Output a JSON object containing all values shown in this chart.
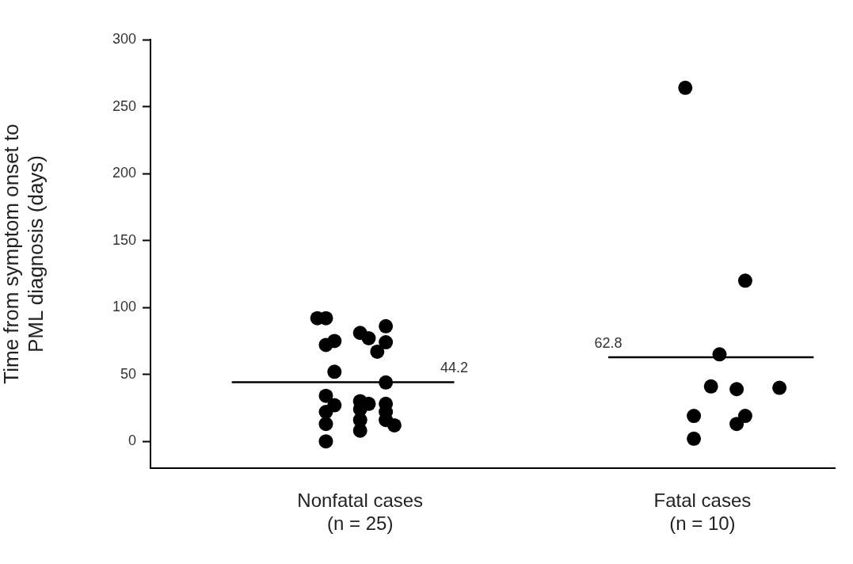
{
  "chart_data": {
    "type": "scatter",
    "ylabel": "Time from symptom onset to\nPML diagnosis (days)",
    "categories": [
      null,
      null,
      null,
      null,
      null,
      null,
      null,
      null,
      null,
      null,
      null,
      null,
      null,
      null,
      null,
      null,
      null,
      null,
      null,
      null,
      null,
      null,
      null,
      null,
      "Nonfatal cases\n(n = 25)",
      null,
      null,
      null,
      null,
      null,
      null,
      null,
      null,
      null,
      null,
      null,
      null,
      null,
      null,
      null,
      null,
      null,
      null,
      null,
      null,
      null,
      null,
      null,
      null,
      null,
      null,
      null,
      null,
      null,
      null,
      null,
      null,
      null,
      null,
      null,
      null,
      null,
      null,
      null,
      "Fatal cases\n(n = 10)",
      null,
      null,
      null,
      null,
      null,
      null,
      null,
      null,
      null,
      null,
      null,
      null,
      null,
      null,
      null
    ],
    "ylim": [
      -20,
      300
    ],
    "yticks": [
      0,
      50,
      100,
      150,
      200,
      250,
      300
    ],
    "grid": false,
    "legend": false,
    "marker": "circle",
    "series": [
      {
        "color": "#000000",
        "values": [
          null,
          null,
          null,
          null,
          null,
          null,
          null,
          null,
          null,
          null,
          null,
          null,
          null,
          null,
          null,
          null,
          null,
          null,
          null,
          92,
          92,
          75,
          null,
          null,
          81,
          77,
          67,
          86,
          null,
          null,
          null,
          null,
          null,
          null,
          null,
          null,
          null,
          null,
          null,
          null,
          null,
          null,
          null,
          null,
          null,
          null,
          null,
          null,
          null,
          null,
          null,
          null,
          null,
          null,
          null,
          null,
          null,
          null,
          null,
          null,
          null,
          null,
          264,
          19,
          null,
          41,
          65,
          null,
          39,
          120,
          null,
          null,
          null,
          40,
          null,
          null,
          null,
          null,
          null,
          null
        ]
      },
      {
        "color": "#000000",
        "values": [
          null,
          null,
          null,
          null,
          null,
          null,
          null,
          null,
          null,
          null,
          null,
          null,
          null,
          null,
          null,
          null,
          null,
          null,
          null,
          null,
          72,
          52,
          null,
          null,
          30,
          null,
          null,
          74,
          null,
          null,
          null,
          null,
          null,
          null,
          null,
          null,
          null,
          null,
          null,
          null,
          null,
          null,
          null,
          null,
          null,
          null,
          null,
          null,
          null,
          null,
          null,
          null,
          null,
          null,
          null,
          null,
          null,
          null,
          null,
          null,
          null,
          null,
          null,
          2,
          null,
          null,
          null,
          null,
          13,
          19,
          null,
          null,
          null,
          null,
          null,
          null,
          null,
          null,
          null,
          null
        ]
      },
      {
        "color": "#000000",
        "values": [
          null,
          null,
          null,
          null,
          null,
          null,
          null,
          null,
          null,
          null,
          null,
          null,
          null,
          null,
          null,
          null,
          null,
          null,
          null,
          null,
          34,
          27,
          null,
          null,
          null,
          28,
          null,
          44,
          null,
          null,
          null,
          null,
          null,
          null,
          null,
          null,
          null,
          null,
          null,
          null,
          null,
          null,
          null,
          null,
          null,
          null,
          null,
          null,
          null,
          null,
          null,
          null,
          null,
          null,
          null,
          null,
          null,
          null,
          null,
          null,
          null,
          null,
          null,
          null,
          null,
          null,
          null,
          null,
          null,
          null,
          null,
          null,
          null,
          null,
          null,
          null,
          null,
          null,
          null,
          null
        ]
      },
      {
        "color": "#000000",
        "values": [
          null,
          null,
          null,
          null,
          null,
          null,
          null,
          null,
          null,
          null,
          null,
          null,
          null,
          null,
          null,
          null,
          null,
          null,
          null,
          null,
          22,
          null,
          null,
          null,
          24,
          null,
          null,
          28,
          null,
          null,
          null,
          null,
          null,
          null,
          null,
          null,
          null,
          null,
          null,
          null,
          null,
          null,
          null,
          null,
          null,
          null,
          null,
          null,
          null,
          null,
          null,
          null,
          null,
          null,
          null,
          null,
          null,
          null,
          null,
          null,
          null,
          null,
          null,
          null,
          null,
          null,
          null,
          null,
          null,
          null,
          null,
          null,
          null,
          null,
          null,
          null,
          null,
          null,
          null,
          null
        ]
      },
      {
        "color": "#000000",
        "values": [
          null,
          null,
          null,
          null,
          null,
          null,
          null,
          null,
          null,
          null,
          null,
          null,
          null,
          null,
          null,
          null,
          null,
          null,
          null,
          null,
          13,
          null,
          null,
          null,
          16,
          null,
          null,
          22,
          null,
          null,
          null,
          null,
          null,
          null,
          null,
          null,
          null,
          null,
          null,
          null,
          null,
          null,
          null,
          null,
          null,
          null,
          null,
          null,
          null,
          null,
          null,
          null,
          null,
          null,
          null,
          null,
          null,
          null,
          null,
          null,
          null,
          null,
          null,
          null,
          null,
          null,
          null,
          null,
          null,
          null,
          null,
          null,
          null,
          null,
          null,
          null,
          null,
          null,
          null,
          null
        ]
      },
      {
        "color": "#000000",
        "values": [
          null,
          null,
          null,
          null,
          null,
          null,
          null,
          null,
          null,
          null,
          null,
          null,
          null,
          null,
          null,
          null,
          null,
          null,
          null,
          null,
          0,
          null,
          null,
          null,
          8,
          null,
          null,
          16,
          null,
          null,
          null,
          null,
          null,
          null,
          null,
          null,
          null,
          null,
          null,
          null,
          null,
          null,
          null,
          null,
          null,
          null,
          null,
          null,
          null,
          null,
          null,
          null,
          null,
          null,
          null,
          null,
          null,
          null,
          null,
          null,
          null,
          null,
          null,
          null,
          null,
          null,
          null,
          null,
          null,
          null,
          null,
          null,
          null,
          null,
          null,
          null,
          null,
          null,
          null,
          null
        ]
      },
      {
        "color": "#000000",
        "values": [
          null,
          null,
          null,
          null,
          null,
          null,
          null,
          null,
          null,
          null,
          null,
          null,
          null,
          null,
          null,
          null,
          null,
          null,
          null,
          null,
          null,
          null,
          null,
          null,
          null,
          null,
          null,
          null,
          12,
          null,
          null,
          null,
          null,
          null,
          null,
          null,
          null,
          null,
          null,
          null,
          null,
          null,
          null,
          null,
          null,
          null,
          null,
          null,
          null,
          null,
          null,
          null,
          null,
          null,
          null,
          null,
          null,
          null,
          null,
          null,
          null,
          null,
          null,
          null,
          null,
          null,
          null,
          null,
          null,
          null,
          null,
          null,
          null,
          null,
          null,
          null,
          null,
          null,
          null,
          null
        ]
      },
      {
        "type": "line",
        "marker": "none",
        "color": "#000000",
        "values": [
          null,
          null,
          null,
          null,
          null,
          null,
          null,
          null,
          null,
          44.2,
          null,
          null,
          null,
          null,
          null,
          null,
          null,
          null,
          null,
          null,
          null,
          null,
          null,
          null,
          null,
          null,
          null,
          null,
          null,
          null,
          null,
          null,
          null,
          null,
          null,
          44.2,
          null,
          null,
          null,
          null,
          null,
          null,
          null,
          null,
          null,
          null,
          null,
          null,
          null,
          null,
          null,
          null,
          null,
          null,
          null,
          null,
          null,
          null,
          null,
          null,
          null,
          null,
          null,
          null,
          null,
          null,
          null,
          null,
          null,
          null,
          null,
          null,
          null,
          null,
          null,
          null,
          null,
          null,
          null,
          null
        ],
        "value_labels": [
          null,
          null,
          null,
          null,
          null,
          null,
          null,
          null,
          null,
          null,
          null,
          null,
          null,
          null,
          null,
          null,
          null,
          null,
          null,
          null,
          null,
          null,
          null,
          null,
          null,
          null,
          null,
          null,
          null,
          null,
          null,
          null,
          null,
          null,
          null,
          "44.2",
          null,
          null,
          null,
          null,
          null,
          null,
          null,
          null,
          null,
          null,
          null,
          null,
          null,
          null,
          null,
          null,
          null,
          null,
          null,
          null,
          null,
          null,
          null,
          null,
          null,
          null,
          null,
          null,
          null,
          null,
          null,
          null,
          null,
          null,
          null,
          null,
          null,
          null,
          null,
          null,
          null,
          null,
          null,
          null
        ]
      },
      {
        "type": "line",
        "marker": "none",
        "color": "#000000",
        "values": [
          null,
          null,
          null,
          null,
          null,
          null,
          null,
          null,
          null,
          null,
          null,
          null,
          null,
          null,
          null,
          null,
          null,
          null,
          null,
          null,
          null,
          null,
          null,
          null,
          null,
          null,
          null,
          null,
          null,
          null,
          null,
          null,
          null,
          null,
          null,
          null,
          null,
          null,
          null,
          null,
          null,
          null,
          null,
          null,
          null,
          null,
          null,
          null,
          null,
          null,
          null,
          null,
          null,
          62.8,
          null,
          null,
          null,
          null,
          null,
          null,
          null,
          null,
          null,
          null,
          null,
          null,
          null,
          null,
          null,
          null,
          null,
          null,
          null,
          null,
          null,
          null,
          null,
          62.8,
          null,
          null
        ],
        "value_labels": [
          null,
          null,
          null,
          null,
          null,
          null,
          null,
          null,
          null,
          null,
          null,
          null,
          null,
          null,
          null,
          null,
          null,
          null,
          null,
          null,
          null,
          null,
          null,
          null,
          null,
          null,
          null,
          null,
          null,
          null,
          null,
          null,
          null,
          null,
          null,
          null,
          null,
          null,
          null,
          null,
          null,
          null,
          null,
          null,
          null,
          null,
          null,
          null,
          null,
          null,
          null,
          null,
          null,
          "62.8",
          null,
          null,
          null,
          null,
          null,
          null,
          null,
          null,
          null,
          null,
          null,
          null,
          null,
          null,
          null,
          null,
          null,
          null,
          null,
          null,
          null,
          null,
          null,
          null,
          null,
          null
        ]
      }
    ]
  }
}
